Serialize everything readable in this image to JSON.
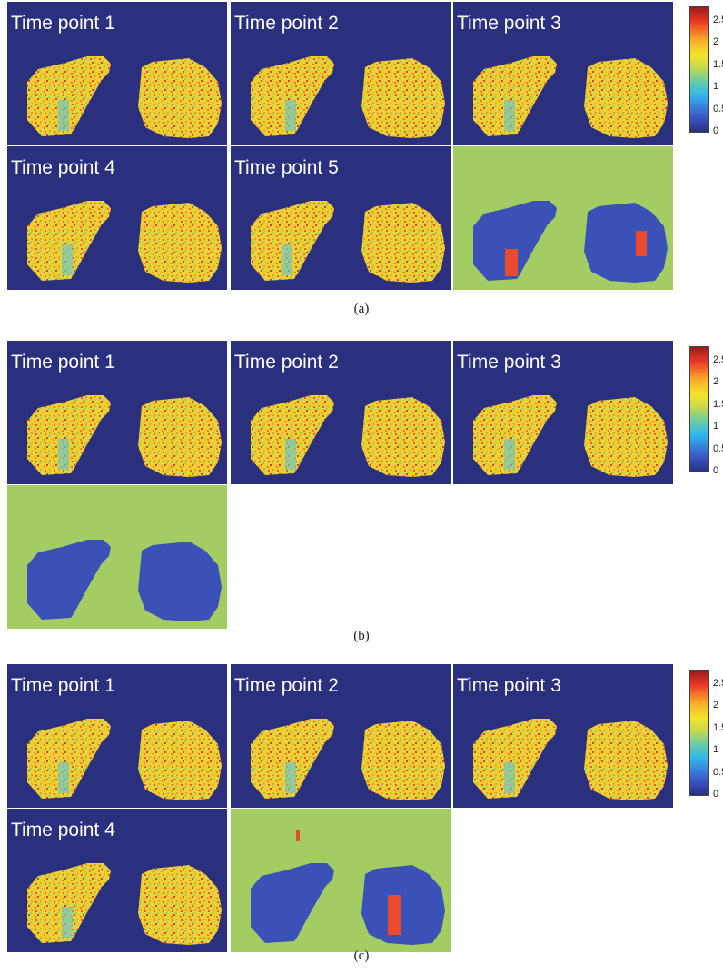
{
  "colorbar": {
    "ticks": [
      "2.5",
      "2",
      "1.5",
      "1",
      "0.5",
      "0"
    ],
    "colors": [
      "#2a2f7e",
      "#3a58c8",
      "#33b8ea",
      "#72cf9b",
      "#f5e42b",
      "#f8a52a",
      "#ec3a26",
      "#9a1b1b"
    ]
  },
  "background_colors": {
    "panel": "#2a2f7e",
    "mask_panel": "#a3cd63",
    "lesion": "#ea4a2e"
  },
  "figures": [
    {
      "caption": "(a)",
      "panels": [
        {
          "title": "Time point 1",
          "type": "map"
        },
        {
          "title": "Time point 2",
          "type": "map"
        },
        {
          "title": "Time point 3",
          "type": "map"
        },
        {
          "title": "Time point 4",
          "type": "map"
        },
        {
          "title": "Time point 5",
          "type": "map"
        },
        {
          "title": "",
          "type": "mask"
        }
      ]
    },
    {
      "caption": "(b)",
      "panels": [
        {
          "title": "Time point 1",
          "type": "map"
        },
        {
          "title": "Time point 2",
          "type": "map"
        },
        {
          "title": "Time point 3",
          "type": "map"
        },
        {
          "title": "",
          "type": "mask"
        }
      ]
    },
    {
      "caption": "(c)",
      "panels": [
        {
          "title": "Time point 1",
          "type": "map"
        },
        {
          "title": "Time point 2",
          "type": "map"
        },
        {
          "title": "Time point 3",
          "type": "map"
        },
        {
          "title": "Time point 4",
          "type": "map"
        },
        {
          "title": "",
          "type": "mask"
        }
      ]
    }
  ]
}
